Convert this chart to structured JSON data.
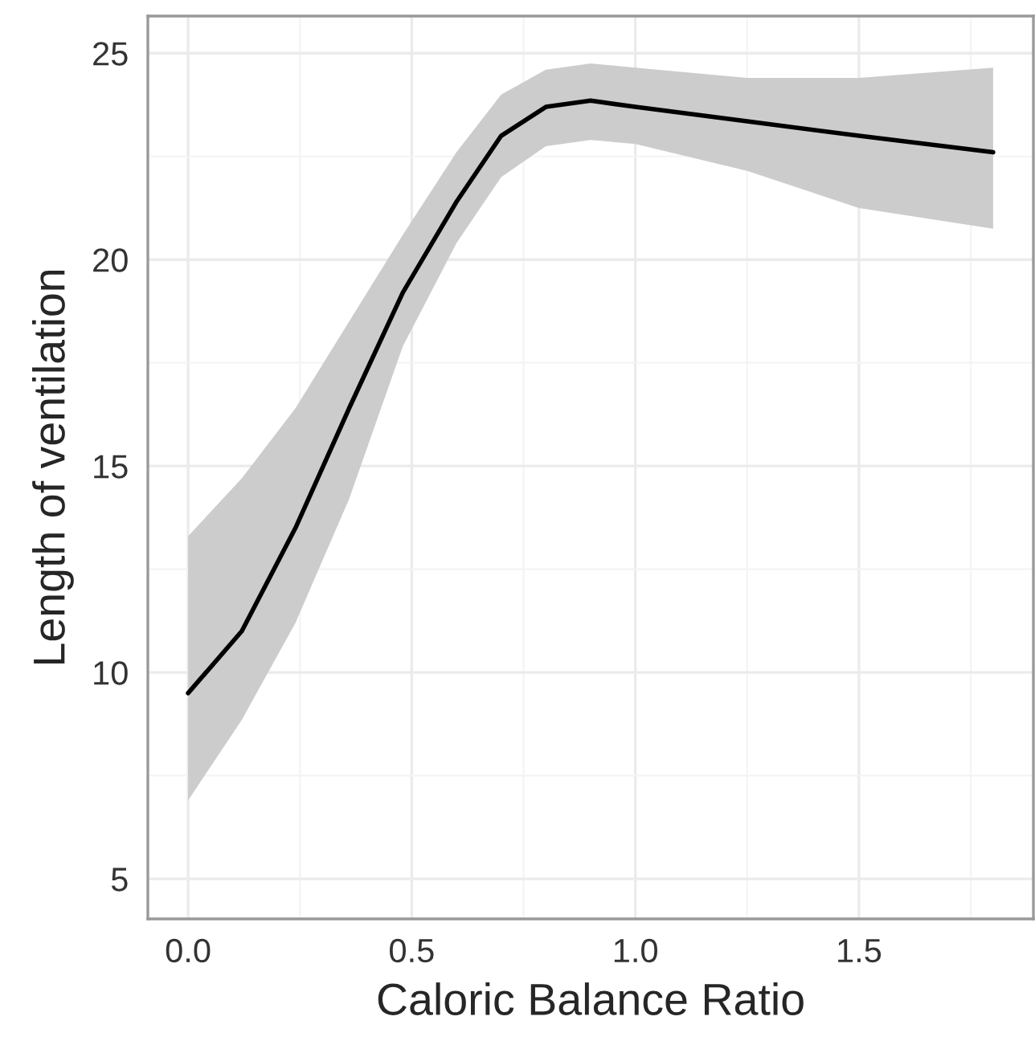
{
  "chart_data": {
    "type": "line",
    "xlabel": "Caloric Balance Ratio",
    "ylabel": "Length of ventilation",
    "x": [
      0,
      0.12,
      0.24,
      0.36,
      0.48,
      0.6,
      0.7,
      0.8,
      0.9,
      1.0,
      1.25,
      1.5,
      1.8
    ],
    "series": [
      {
        "color": "#000000",
        "values": [
          9.5,
          11.0,
          13.5,
          16.4,
          19.2,
          21.4,
          23.0,
          23.7,
          23.85,
          23.7,
          23.35,
          23.0,
          22.6
        ],
        "upper": [
          13.3,
          14.7,
          16.4,
          18.5,
          20.6,
          22.6,
          24.0,
          24.6,
          24.75,
          24.65,
          24.4,
          24.4,
          24.65
        ],
        "lower": [
          6.9,
          8.85,
          11.2,
          14.2,
          17.9,
          20.4,
          22.0,
          22.75,
          22.9,
          22.8,
          22.15,
          21.25,
          20.75
        ]
      }
    ],
    "xlim": [
      -0.09,
      1.89
    ],
    "xticks": [
      {
        "value": 0,
        "label": "0.0"
      },
      {
        "value": 0.5,
        "label": "0.5"
      },
      {
        "value": 1,
        "label": "1.0"
      },
      {
        "value": 1.5,
        "label": "1.5"
      }
    ],
    "ylim": [
      4.03,
      25.9
    ],
    "yticks": [
      5,
      10,
      15,
      20,
      25
    ],
    "grid": true,
    "line_style": "solid",
    "marker": "none"
  }
}
